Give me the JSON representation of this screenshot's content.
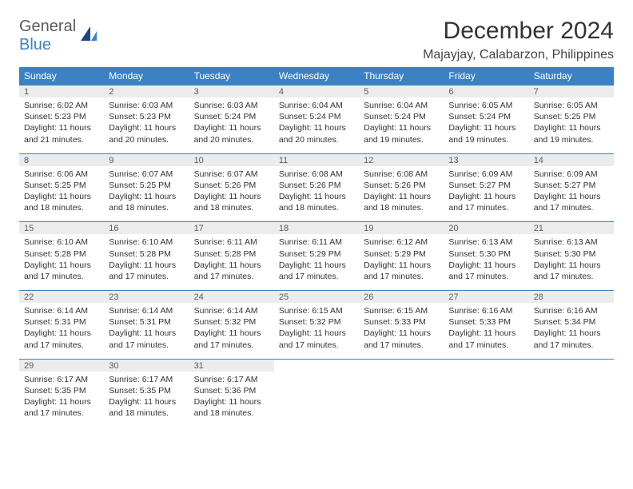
{
  "logo": {
    "general": "General",
    "blue": "Blue"
  },
  "header": {
    "title": "December 2024",
    "location": "Majayjay, Calabarzon, Philippines"
  },
  "colors": {
    "headerBar": "#3b82c4",
    "dayBarBg": "#ececec",
    "ruleLine": "#3b82c4"
  },
  "daysOfWeek": [
    "Sunday",
    "Monday",
    "Tuesday",
    "Wednesday",
    "Thursday",
    "Friday",
    "Saturday"
  ],
  "days": [
    {
      "n": 1,
      "sunrise": "6:02 AM",
      "sunset": "5:23 PM",
      "daylight": "11 hours and 21 minutes."
    },
    {
      "n": 2,
      "sunrise": "6:03 AM",
      "sunset": "5:23 PM",
      "daylight": "11 hours and 20 minutes."
    },
    {
      "n": 3,
      "sunrise": "6:03 AM",
      "sunset": "5:24 PM",
      "daylight": "11 hours and 20 minutes."
    },
    {
      "n": 4,
      "sunrise": "6:04 AM",
      "sunset": "5:24 PM",
      "daylight": "11 hours and 20 minutes."
    },
    {
      "n": 5,
      "sunrise": "6:04 AM",
      "sunset": "5:24 PM",
      "daylight": "11 hours and 19 minutes."
    },
    {
      "n": 6,
      "sunrise": "6:05 AM",
      "sunset": "5:24 PM",
      "daylight": "11 hours and 19 minutes."
    },
    {
      "n": 7,
      "sunrise": "6:05 AM",
      "sunset": "5:25 PM",
      "daylight": "11 hours and 19 minutes."
    },
    {
      "n": 8,
      "sunrise": "6:06 AM",
      "sunset": "5:25 PM",
      "daylight": "11 hours and 18 minutes."
    },
    {
      "n": 9,
      "sunrise": "6:07 AM",
      "sunset": "5:25 PM",
      "daylight": "11 hours and 18 minutes."
    },
    {
      "n": 10,
      "sunrise": "6:07 AM",
      "sunset": "5:26 PM",
      "daylight": "11 hours and 18 minutes."
    },
    {
      "n": 11,
      "sunrise": "6:08 AM",
      "sunset": "5:26 PM",
      "daylight": "11 hours and 18 minutes."
    },
    {
      "n": 12,
      "sunrise": "6:08 AM",
      "sunset": "5:26 PM",
      "daylight": "11 hours and 18 minutes."
    },
    {
      "n": 13,
      "sunrise": "6:09 AM",
      "sunset": "5:27 PM",
      "daylight": "11 hours and 17 minutes."
    },
    {
      "n": 14,
      "sunrise": "6:09 AM",
      "sunset": "5:27 PM",
      "daylight": "11 hours and 17 minutes."
    },
    {
      "n": 15,
      "sunrise": "6:10 AM",
      "sunset": "5:28 PM",
      "daylight": "11 hours and 17 minutes."
    },
    {
      "n": 16,
      "sunrise": "6:10 AM",
      "sunset": "5:28 PM",
      "daylight": "11 hours and 17 minutes."
    },
    {
      "n": 17,
      "sunrise": "6:11 AM",
      "sunset": "5:28 PM",
      "daylight": "11 hours and 17 minutes."
    },
    {
      "n": 18,
      "sunrise": "6:11 AM",
      "sunset": "5:29 PM",
      "daylight": "11 hours and 17 minutes."
    },
    {
      "n": 19,
      "sunrise": "6:12 AM",
      "sunset": "5:29 PM",
      "daylight": "11 hours and 17 minutes."
    },
    {
      "n": 20,
      "sunrise": "6:13 AM",
      "sunset": "5:30 PM",
      "daylight": "11 hours and 17 minutes."
    },
    {
      "n": 21,
      "sunrise": "6:13 AM",
      "sunset": "5:30 PM",
      "daylight": "11 hours and 17 minutes."
    },
    {
      "n": 22,
      "sunrise": "6:14 AM",
      "sunset": "5:31 PM",
      "daylight": "11 hours and 17 minutes."
    },
    {
      "n": 23,
      "sunrise": "6:14 AM",
      "sunset": "5:31 PM",
      "daylight": "11 hours and 17 minutes."
    },
    {
      "n": 24,
      "sunrise": "6:14 AM",
      "sunset": "5:32 PM",
      "daylight": "11 hours and 17 minutes."
    },
    {
      "n": 25,
      "sunrise": "6:15 AM",
      "sunset": "5:32 PM",
      "daylight": "11 hours and 17 minutes."
    },
    {
      "n": 26,
      "sunrise": "6:15 AM",
      "sunset": "5:33 PM",
      "daylight": "11 hours and 17 minutes."
    },
    {
      "n": 27,
      "sunrise": "6:16 AM",
      "sunset": "5:33 PM",
      "daylight": "11 hours and 17 minutes."
    },
    {
      "n": 28,
      "sunrise": "6:16 AM",
      "sunset": "5:34 PM",
      "daylight": "11 hours and 17 minutes."
    },
    {
      "n": 29,
      "sunrise": "6:17 AM",
      "sunset": "5:35 PM",
      "daylight": "11 hours and 17 minutes."
    },
    {
      "n": 30,
      "sunrise": "6:17 AM",
      "sunset": "5:35 PM",
      "daylight": "11 hours and 18 minutes."
    },
    {
      "n": 31,
      "sunrise": "6:17 AM",
      "sunset": "5:36 PM",
      "daylight": "11 hours and 18 minutes."
    }
  ],
  "labels": {
    "sunrise": "Sunrise:",
    "sunset": "Sunset:",
    "daylight": "Daylight:"
  },
  "layout": {
    "startColumn": 0,
    "columns": 7,
    "rows": 5
  }
}
